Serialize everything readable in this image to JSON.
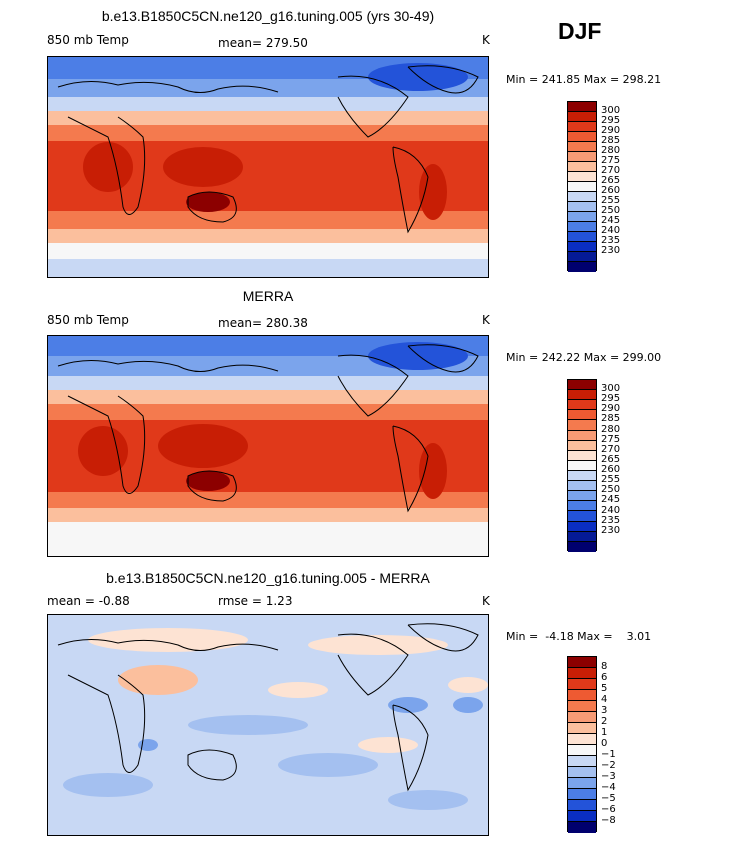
{
  "season": "DJF",
  "panels": [
    {
      "title": "b.e13.B1850C5CN.ne120_g16.tuning.005 (yrs 30-49)",
      "variable": "850 mb Temp",
      "stat": "mean=  279.50",
      "units": "K",
      "minmax": "Min = 241.85 Max = 298.21"
    },
    {
      "title": "MERRA",
      "variable": "850 mb Temp",
      "stat": "mean=  280.38",
      "units": "K",
      "minmax": "Min = 242.22 Max = 299.00"
    },
    {
      "title": "b.e13.B1850C5CN.ne120_g16.tuning.005 - MERRA",
      "stat_mean": "mean =   -0.88",
      "stat_rmse": "rmse =    1.23",
      "units": "K",
      "minmax": "Min =  -4.18 Max =    3.01"
    }
  ],
  "colorbars": {
    "temperature": {
      "labels": [
        "300",
        "295",
        "290",
        "285",
        "280",
        "275",
        "270",
        "265",
        "260",
        "255",
        "250",
        "245",
        "240",
        "235",
        "230"
      ],
      "colors": [
        "#8c0000",
        "#c81e05",
        "#e0391a",
        "#ee5a32",
        "#f47a4e",
        "#f79b75",
        "#fbbf9d",
        "#fde3d3",
        "#f7f7f7",
        "#c8d8f4",
        "#a4c0f0",
        "#7ba4ec",
        "#4c7ee6",
        "#2353d9",
        "#0a2ec2",
        "#051a96",
        "#00006e"
      ]
    },
    "difference": {
      "labels": [
        "8",
        "6",
        "5",
        "4",
        "3",
        "2",
        "1",
        "0",
        "−1",
        "−2",
        "−3",
        "−4",
        "−5",
        "−6",
        "−8"
      ],
      "colors": [
        "#8c0000",
        "#c81e05",
        "#e0391a",
        "#ee5a32",
        "#f47a4e",
        "#f79b75",
        "#fbbf9d",
        "#fde3d3",
        "#f7f7f7",
        "#c8d8f4",
        "#a4c0f0",
        "#7ba4ec",
        "#4c7ee6",
        "#2353d9",
        "#0a2ec2",
        "#00006e"
      ]
    }
  }
}
